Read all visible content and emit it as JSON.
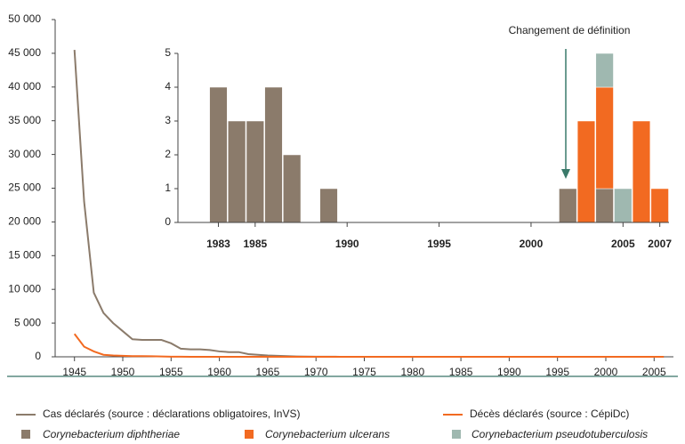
{
  "chart_data": [
    {
      "type": "line",
      "x": [
        1945,
        1946,
        1947,
        1948,
        1949,
        1950,
        1951,
        1952,
        1953,
        1954,
        1955,
        1956,
        1957,
        1958,
        1959,
        1960,
        1961,
        1962,
        1963,
        1964,
        1965,
        1966,
        1967,
        1968,
        1969,
        1970,
        1971,
        1972,
        1973,
        1974,
        1975,
        1976,
        1977,
        1978,
        1979,
        1980,
        1981,
        1982,
        1983,
        1984,
        1985,
        1986,
        1987,
        1988,
        1989,
        1990,
        1991,
        1992,
        1993,
        1994,
        1995,
        1996,
        1997,
        1998,
        1999,
        2000,
        2001,
        2002,
        2003,
        2004,
        2005,
        2006
      ],
      "series": [
        {
          "name": "Cas déclarés (source : déclarations obligatoires, InVS)",
          "color": "#8b7b6b",
          "values": [
            45500,
            23000,
            9500,
            6500,
            5000,
            3800,
            2600,
            2500,
            2500,
            2500,
            2000,
            1200,
            1100,
            1100,
            1000,
            800,
            700,
            700,
            400,
            300,
            200,
            150,
            100,
            50,
            30,
            20,
            10,
            10,
            5,
            5,
            0,
            0,
            0,
            0,
            0,
            0,
            0,
            0,
            0,
            0,
            0,
            0,
            0,
            0,
            0,
            0,
            0,
            0,
            0,
            0,
            0,
            0,
            0,
            0,
            0,
            0,
            0,
            0,
            0,
            0,
            0,
            0
          ]
        },
        {
          "name": "Décès déclarés (source : CépiDc)",
          "color": "#f26a21",
          "values": [
            3400,
            1500,
            800,
            300,
            200,
            150,
            100,
            100,
            80,
            50,
            20,
            10,
            5,
            5,
            0,
            0,
            0,
            0,
            0,
            0,
            0,
            0,
            0,
            0,
            0,
            0,
            0,
            0,
            0,
            0,
            0,
            0,
            0,
            0,
            0,
            0,
            0,
            0,
            0,
            0,
            0,
            0,
            0,
            0,
            0,
            0,
            0,
            0,
            0,
            0,
            0,
            0,
            0,
            0,
            0,
            0,
            0,
            0,
            0,
            0,
            0,
            0
          ]
        }
      ],
      "xlim": [
        1943,
        2007
      ],
      "xticks": [
        1945,
        1950,
        1955,
        1960,
        1965,
        1970,
        1975,
        1980,
        1985,
        1990,
        1995,
        2000,
        2005
      ],
      "ylim": [
        0,
        50000
      ],
      "yticks": [
        0,
        {
          "value": 5000,
          "label": "5 000"
        },
        {
          "value": 10000,
          "label": "10 000"
        },
        {
          "value": 15000,
          "label": "15 000"
        },
        {
          "value": 20000,
          "label": "20 000"
        },
        {
          "value": 25000,
          "label": "25 000"
        },
        {
          "value": 30000,
          "label": "30 000"
        },
        {
          "value": 35000,
          "label": "35 000"
        },
        {
          "value": 40000,
          "label": "40 000"
        },
        {
          "value": 45000,
          "label": "45 000"
        },
        {
          "value": 50000,
          "label": "50 000"
        }
      ]
    },
    {
      "type": "stacked-bar",
      "x": [
        1983,
        1984,
        1985,
        1986,
        1987,
        1988,
        1989,
        1990,
        1991,
        1992,
        1993,
        1994,
        1995,
        1996,
        1997,
        1998,
        1999,
        2000,
        2001,
        2002,
        2003,
        2004,
        2005,
        2006,
        2007
      ],
      "series": [
        {
          "name": "Corynebacterium diphtheriae",
          "color": "#8b7b6b",
          "values": [
            4,
            3,
            3,
            4,
            2,
            0,
            1,
            0,
            0,
            0,
            0,
            0,
            0,
            0,
            0,
            0,
            0,
            0,
            0,
            1,
            0,
            1,
            0,
            0,
            0
          ]
        },
        {
          "name": "Corynebacterium ulcerans",
          "color": "#f26a21",
          "values": [
            0,
            0,
            0,
            0,
            0,
            0,
            0,
            0,
            0,
            0,
            0,
            0,
            0,
            0,
            0,
            0,
            0,
            0,
            0,
            0,
            3,
            3,
            0,
            3,
            1
          ]
        },
        {
          "name": "Corynebacterium pseudotuberculosis",
          "color": "#9fb8b0",
          "values": [
            0,
            0,
            0,
            0,
            0,
            0,
            0,
            0,
            0,
            0,
            0,
            0,
            0,
            0,
            0,
            0,
            0,
            0,
            0,
            0,
            0,
            1,
            1,
            0,
            0
          ]
        }
      ],
      "xlim": [
        1980.8,
        2007.5
      ],
      "xticks": [
        1983,
        1985,
        1990,
        1995,
        2000,
        2005,
        2007
      ],
      "ylim": [
        0,
        5
      ],
      "yticks": [
        0,
        1,
        2,
        3,
        4,
        5
      ],
      "annotation": "Changement de définition"
    }
  ]
}
